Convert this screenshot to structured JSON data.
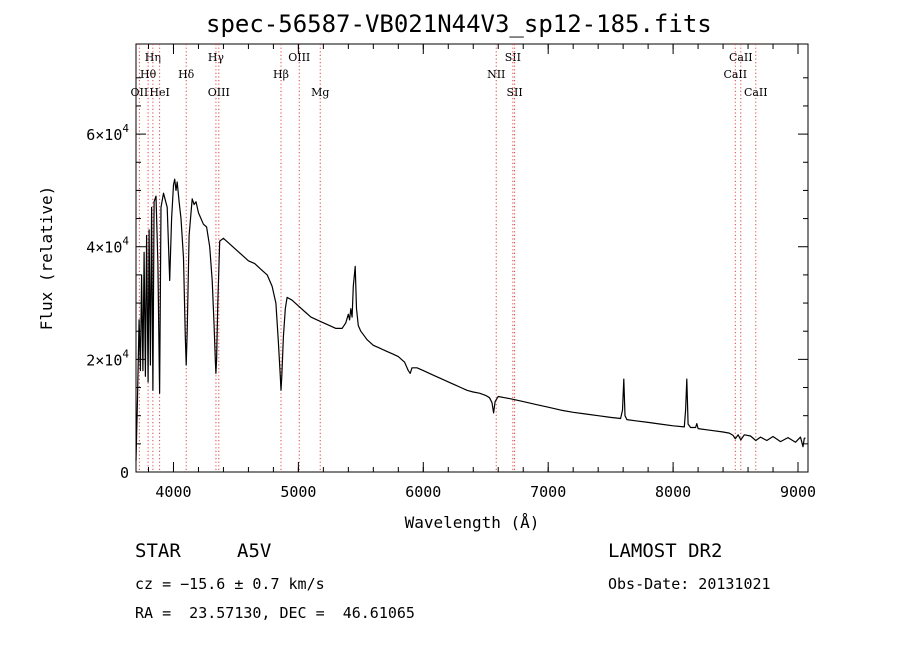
{
  "chart_data": {
    "type": "line",
    "title": "spec-56587-VB021N44V3_sp12-185.fits",
    "xlabel": "Wavelength (Å)",
    "ylabel": "Flux (relative)",
    "xlim": [
      3700,
      9080
    ],
    "ylim": [
      0,
      76000
    ],
    "xticks": [
      4000,
      5000,
      6000,
      7000,
      8000,
      9000
    ],
    "xtick_labels": [
      "4000",
      "5000",
      "6000",
      "7000",
      "8000",
      "9000"
    ],
    "yticks": [
      0,
      20000,
      40000,
      60000
    ],
    "ytick_labels": [
      {
        "value": 0,
        "mant": "0",
        "exp": ""
      },
      {
        "value": 20000,
        "mant": "2×10",
        "exp": "4"
      },
      {
        "value": 40000,
        "mant": "4×10",
        "exp": "4"
      },
      {
        "value": 60000,
        "mant": "6×10",
        "exp": "4"
      }
    ],
    "line_markers": [
      {
        "label": "Hη",
        "wavelength": 3835,
        "row": 0
      },
      {
        "label": "Hθ",
        "wavelength": 3797,
        "row": 1
      },
      {
        "label": "OII",
        "wavelength": 3727,
        "row": 2
      },
      {
        "label": "HeI",
        "wavelength": 3889,
        "row": 2
      },
      {
        "label": "Hδ",
        "wavelength": 4102,
        "row": 1
      },
      {
        "label": "Hγ",
        "wavelength": 4340,
        "row": 0
      },
      {
        "label": "OIII",
        "wavelength": 4363,
        "row": 2
      },
      {
        "label": "OIII",
        "wavelength": 5007,
        "row": 0
      },
      {
        "label": "Hβ",
        "wavelength": 4861,
        "row": 1
      },
      {
        "label": "Mg",
        "wavelength": 5175,
        "row": 2
      },
      {
        "label": "SII",
        "wavelength": 6717,
        "row": 0
      },
      {
        "label": "NII",
        "wavelength": 6584,
        "row": 1
      },
      {
        "label": "SII",
        "wavelength": 6731,
        "row": 2
      },
      {
        "label": "CaII",
        "wavelength": 8542,
        "row": 0
      },
      {
        "label": "CaII",
        "wavelength": 8498,
        "row": 1
      },
      {
        "label": "CaII",
        "wavelength": 8662,
        "row": 2
      }
    ],
    "series": [
      {
        "values": [
          [
            3700,
            2000
          ],
          [
            3712,
            13000
          ],
          [
            3725,
            27000
          ],
          [
            3735,
            18000
          ],
          [
            3745,
            35000
          ],
          [
            3755,
            18000
          ],
          [
            3765,
            39000
          ],
          [
            3775,
            17000
          ],
          [
            3785,
            42000
          ],
          [
            3797,
            16000
          ],
          [
            3805,
            43000
          ],
          [
            3815,
            19000
          ],
          [
            3825,
            47000
          ],
          [
            3835,
            14500
          ],
          [
            3845,
            48000
          ],
          [
            3860,
            49000
          ],
          [
            3875,
            37000
          ],
          [
            3889,
            14000
          ],
          [
            3900,
            47000
          ],
          [
            3920,
            49500
          ],
          [
            3950,
            47000
          ],
          [
            3970,
            34000
          ],
          [
            3985,
            45000
          ],
          [
            4000,
            51000
          ],
          [
            4010,
            52000
          ],
          [
            4020,
            50000
          ],
          [
            4030,
            51500
          ],
          [
            4045,
            48000
          ],
          [
            4060,
            45000
          ],
          [
            4080,
            38000
          ],
          [
            4095,
            24000
          ],
          [
            4102,
            19000
          ],
          [
            4110,
            25000
          ],
          [
            4125,
            42000
          ],
          [
            4140,
            46000
          ],
          [
            4150,
            48500
          ],
          [
            4165,
            47500
          ],
          [
            4180,
            48000
          ],
          [
            4200,
            46000
          ],
          [
            4220,
            45000
          ],
          [
            4240,
            44000
          ],
          [
            4265,
            43500
          ],
          [
            4290,
            40000
          ],
          [
            4310,
            34000
          ],
          [
            4325,
            26000
          ],
          [
            4335,
            20000
          ],
          [
            4340,
            17500
          ],
          [
            4345,
            20000
          ],
          [
            4355,
            30000
          ],
          [
            4370,
            41000
          ],
          [
            4400,
            41500
          ],
          [
            4450,
            40500
          ],
          [
            4500,
            39500
          ],
          [
            4550,
            38500
          ],
          [
            4600,
            37500
          ],
          [
            4650,
            37000
          ],
          [
            4700,
            36000
          ],
          [
            4750,
            35000
          ],
          [
            4790,
            33000
          ],
          [
            4820,
            30000
          ],
          [
            4840,
            23000
          ],
          [
            4855,
            17000
          ],
          [
            4861,
            14500
          ],
          [
            4867,
            17000
          ],
          [
            4880,
            24000
          ],
          [
            4895,
            29000
          ],
          [
            4910,
            31000
          ],
          [
            4950,
            30500
          ],
          [
            5000,
            29500
          ],
          [
            5050,
            28500
          ],
          [
            5100,
            27500
          ],
          [
            5150,
            27000
          ],
          [
            5200,
            26500
          ],
          [
            5250,
            26000
          ],
          [
            5300,
            25500
          ],
          [
            5350,
            25500
          ],
          [
            5380,
            26500
          ],
          [
            5400,
            28000
          ],
          [
            5410,
            27000
          ],
          [
            5420,
            29000
          ],
          [
            5430,
            27500
          ],
          [
            5440,
            33000
          ],
          [
            5455,
            36500
          ],
          [
            5465,
            29000
          ],
          [
            5480,
            26000
          ],
          [
            5500,
            25000
          ],
          [
            5550,
            23500
          ],
          [
            5600,
            22500
          ],
          [
            5650,
            22000
          ],
          [
            5700,
            21500
          ],
          [
            5750,
            21000
          ],
          [
            5800,
            20500
          ],
          [
            5850,
            19500
          ],
          [
            5880,
            18000
          ],
          [
            5895,
            17500
          ],
          [
            5910,
            18500
          ],
          [
            5950,
            18500
          ],
          [
            6000,
            18000
          ],
          [
            6050,
            17500
          ],
          [
            6100,
            17000
          ],
          [
            6150,
            16500
          ],
          [
            6200,
            16000
          ],
          [
            6250,
            15500
          ],
          [
            6300,
            15000
          ],
          [
            6350,
            14500
          ],
          [
            6400,
            14200
          ],
          [
            6450,
            14000
          ],
          [
            6500,
            13600
          ],
          [
            6530,
            13200
          ],
          [
            6550,
            12300
          ],
          [
            6563,
            10500
          ],
          [
            6575,
            12500
          ],
          [
            6600,
            13400
          ],
          [
            6650,
            13200
          ],
          [
            6700,
            13000
          ],
          [
            6800,
            12500
          ],
          [
            6900,
            12000
          ],
          [
            7000,
            11500
          ],
          [
            7100,
            11000
          ],
          [
            7200,
            10600
          ],
          [
            7300,
            10300
          ],
          [
            7400,
            10000
          ],
          [
            7500,
            9700
          ],
          [
            7580,
            9500
          ],
          [
            7595,
            11000
          ],
          [
            7605,
            16500
          ],
          [
            7615,
            10000
          ],
          [
            7630,
            9300
          ],
          [
            7700,
            9100
          ],
          [
            7800,
            8800
          ],
          [
            7900,
            8500
          ],
          [
            8000,
            8200
          ],
          [
            8090,
            8000
          ],
          [
            8100,
            11000
          ],
          [
            8110,
            16500
          ],
          [
            8120,
            8500
          ],
          [
            8140,
            7900
          ],
          [
            8180,
            7900
          ],
          [
            8190,
            8600
          ],
          [
            8200,
            7700
          ],
          [
            8300,
            7400
          ],
          [
            8400,
            7100
          ],
          [
            8450,
            6900
          ],
          [
            8480,
            6500
          ],
          [
            8498,
            5900
          ],
          [
            8520,
            6600
          ],
          [
            8542,
            5700
          ],
          [
            8570,
            6600
          ],
          [
            8620,
            6400
          ],
          [
            8662,
            5600
          ],
          [
            8700,
            6200
          ],
          [
            8750,
            5600
          ],
          [
            8800,
            6300
          ],
          [
            8860,
            5400
          ],
          [
            8920,
            6100
          ],
          [
            8980,
            5300
          ],
          [
            9020,
            6200
          ],
          [
            9040,
            4500
          ],
          [
            9050,
            6000
          ],
          [
            9060,
            6000
          ]
        ]
      }
    ]
  },
  "footer": {
    "object_type": "STAR",
    "subclass": "A5V",
    "survey": "LAMOST DR2",
    "cz": "cz = −15.6 ± 0.7 km/s",
    "obs_date": "Obs-Date: 20131021",
    "coords": "RA =  23.57130, DEC =  46.61065"
  }
}
